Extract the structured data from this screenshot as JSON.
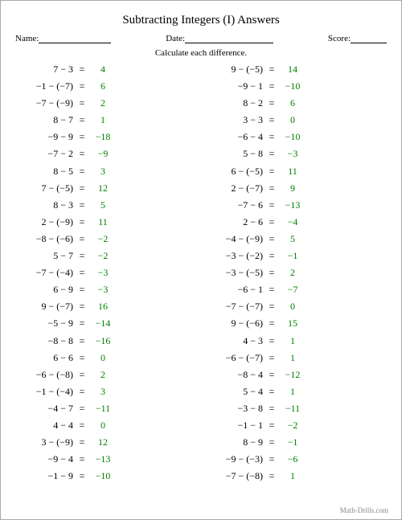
{
  "title": "Subtracting Integers (I) Answers",
  "labels": {
    "name": "Name:",
    "date": "Date:",
    "score": "Score:"
  },
  "instruction": "Calculate each difference.",
  "footer": "Math-Drills.com",
  "answer_color": "#008000",
  "left": [
    {
      "a": 7,
      "b": 3,
      "r": 4
    },
    {
      "a": -1,
      "b": -7,
      "r": 6
    },
    {
      "a": -7,
      "b": -9,
      "r": 2
    },
    {
      "a": 8,
      "b": 7,
      "r": 1
    },
    {
      "a": -9,
      "b": 9,
      "r": -18
    },
    {
      "a": -7,
      "b": 2,
      "r": -9
    },
    {
      "a": 8,
      "b": 5,
      "r": 3
    },
    {
      "a": 7,
      "b": -5,
      "r": 12
    },
    {
      "a": 8,
      "b": 3,
      "r": 5
    },
    {
      "a": 2,
      "b": -9,
      "r": 11
    },
    {
      "a": -8,
      "b": -6,
      "r": -2
    },
    {
      "a": 5,
      "b": 7,
      "r": -2
    },
    {
      "a": -7,
      "b": -4,
      "r": -3
    },
    {
      "a": 6,
      "b": 9,
      "r": -3
    },
    {
      "a": 9,
      "b": -7,
      "r": 16
    },
    {
      "a": -5,
      "b": 9,
      "r": -14
    },
    {
      "a": -8,
      "b": 8,
      "r": -16
    },
    {
      "a": 6,
      "b": 6,
      "r": 0
    },
    {
      "a": -6,
      "b": -8,
      "r": 2
    },
    {
      "a": -1,
      "b": -4,
      "r": 3
    },
    {
      "a": -4,
      "b": 7,
      "r": -11
    },
    {
      "a": 4,
      "b": 4,
      "r": 0
    },
    {
      "a": 3,
      "b": -9,
      "r": 12
    },
    {
      "a": -9,
      "b": 4,
      "r": -13
    },
    {
      "a": -1,
      "b": 9,
      "r": -10
    }
  ],
  "right": [
    {
      "a": 9,
      "b": -5,
      "r": 14
    },
    {
      "a": -9,
      "b": 1,
      "r": -10
    },
    {
      "a": 8,
      "b": 2,
      "r": 6
    },
    {
      "a": 3,
      "b": 3,
      "r": 0
    },
    {
      "a": -6,
      "b": 4,
      "r": -10
    },
    {
      "a": 5,
      "b": 8,
      "r": -3
    },
    {
      "a": 6,
      "b": -5,
      "r": 11
    },
    {
      "a": 2,
      "b": -7,
      "r": 9
    },
    {
      "a": -7,
      "b": 6,
      "r": -13
    },
    {
      "a": 2,
      "b": 6,
      "r": -4
    },
    {
      "a": -4,
      "b": -9,
      "r": 5
    },
    {
      "a": -3,
      "b": -2,
      "r": -1
    },
    {
      "a": -3,
      "b": -5,
      "r": 2
    },
    {
      "a": -6,
      "b": 1,
      "r": -7
    },
    {
      "a": -7,
      "b": -7,
      "r": 0
    },
    {
      "a": 9,
      "b": -6,
      "r": 15
    },
    {
      "a": 4,
      "b": 3,
      "r": 1
    },
    {
      "a": -6,
      "b": -7,
      "r": 1
    },
    {
      "a": -8,
      "b": 4,
      "r": -12
    },
    {
      "a": 5,
      "b": 4,
      "r": 1
    },
    {
      "a": -3,
      "b": 8,
      "r": -11
    },
    {
      "a": -1,
      "b": 1,
      "r": -2
    },
    {
      "a": 8,
      "b": 9,
      "r": -1
    },
    {
      "a": -9,
      "b": -3,
      "r": -6
    },
    {
      "a": -7,
      "b": -8,
      "r": 1
    }
  ]
}
